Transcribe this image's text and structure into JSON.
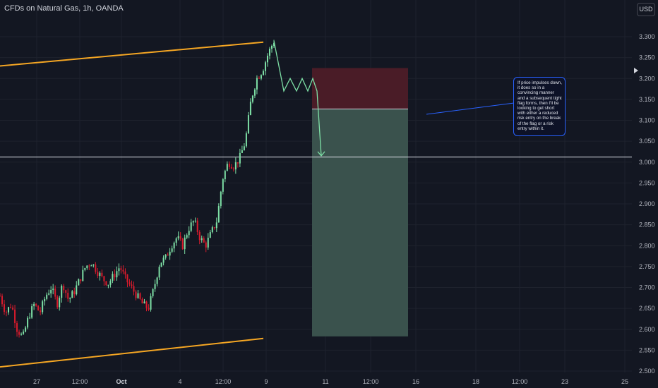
{
  "header": {
    "title": "CFDs on Natural Gas, 1h, OANDA",
    "currency_button": "USD"
  },
  "annotation": {
    "text": "If price impulses down, it does so in a convincing manner and a subsequent tight flag forms, then I'll be looking to get short with either a reduced risk entry on the break of the flag or a risk entry within it."
  },
  "colors": {
    "background": "#131722",
    "up": "#7ee0a6",
    "down": "#d81b2c",
    "channel": "#f5a623",
    "stop_zone": "#4a1c27",
    "target_zone": "#3a524d",
    "callout_border": "#2962ff"
  },
  "chart_data": {
    "type": "candlestick",
    "title": "CFDs on Natural Gas, 1h, OANDA",
    "ylim": [
      2.5,
      3.3
    ],
    "y_ticks": [
      "3.300",
      "3.250",
      "3.200",
      "3.150",
      "3.100",
      "3.050",
      "3.000",
      "2.950",
      "2.900",
      "2.850",
      "2.800",
      "2.750",
      "2.700",
      "2.650",
      "2.600",
      "2.550",
      "2.500"
    ],
    "x_ticks": [
      "27",
      "12:00",
      "Oct",
      "4",
      "12:00",
      "9",
      "11",
      "12:00",
      "16",
      "18",
      "12:00",
      "23",
      "25"
    ],
    "price_path": [
      2.68,
      2.64,
      2.66,
      2.6,
      2.58,
      2.63,
      2.66,
      2.64,
      2.68,
      2.7,
      2.66,
      2.71,
      2.67,
      2.69,
      2.72,
      2.75,
      2.76,
      2.74,
      2.72,
      2.71,
      2.73,
      2.75,
      2.72,
      2.7,
      2.68,
      2.66,
      2.65,
      2.7,
      2.76,
      2.77,
      2.8,
      2.82,
      2.8,
      2.84,
      2.86,
      2.82,
      2.8,
      2.83,
      2.86,
      2.96,
      3.0,
      2.99,
      3.01,
      3.05,
      3.15,
      3.2,
      3.22,
      3.26,
      3.29
    ],
    "horizontal_line": 3.012,
    "channel_upper": [
      [
        3.23,
        3.287
      ]
    ],
    "channel_lower": [
      [
        2.51,
        2.578
      ]
    ],
    "projection": [
      3.29,
      3.17,
      3.2,
      3.17,
      3.2,
      3.17,
      3.2,
      3.17,
      3.015
    ],
    "short_position": {
      "entry": 3.127,
      "stop": 3.225,
      "target": 2.583
    }
  }
}
